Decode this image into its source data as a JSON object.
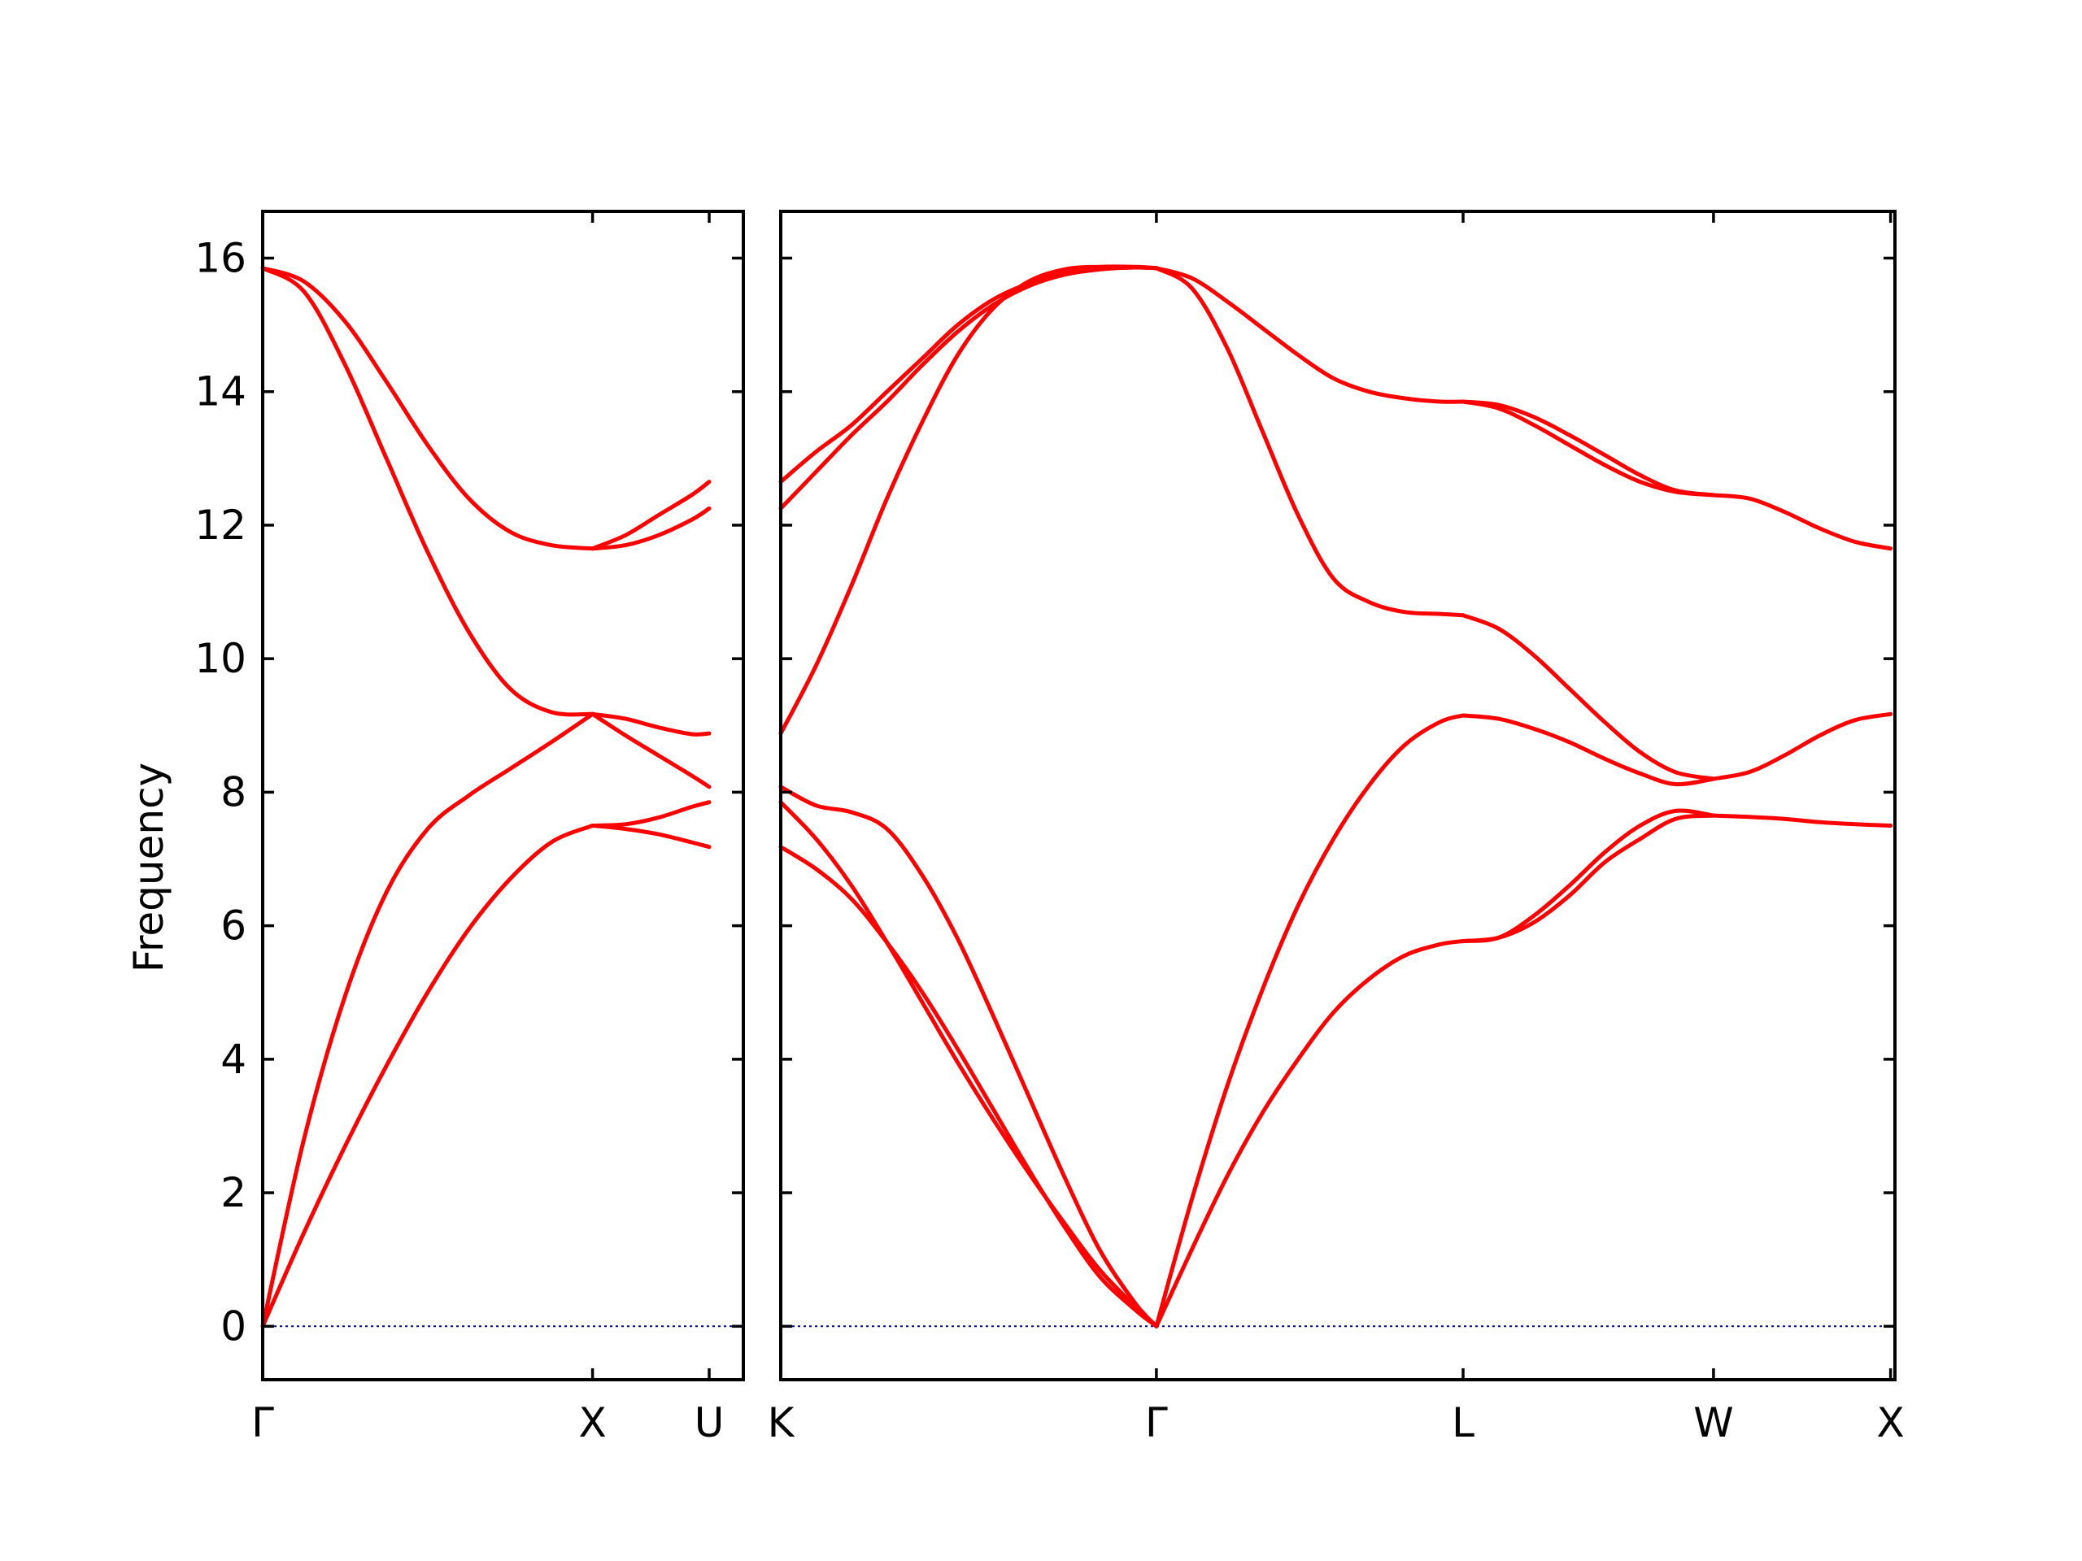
{
  "chart_data": {
    "type": "line",
    "title": "",
    "ylabel": "Frequency",
    "xlabel": "",
    "ylim": [
      -0.8,
      16.7
    ],
    "y_ticks": [
      0,
      2,
      4,
      6,
      8,
      10,
      12,
      14,
      16
    ],
    "grid": false,
    "legend": "none",
    "colors": {
      "bands": "#ff0000",
      "zero_line": "#0000aa",
      "frame": "#000000"
    },
    "panels": [
      {
        "xlim": [
          0,
          1.4571
        ],
        "ticks": [
          {
            "label": "Γ",
            "x": 0
          },
          {
            "label": "X",
            "x": 1.0
          },
          {
            "label": "U",
            "x": 1.3536
          }
        ],
        "segments": [
          {
            "x": [
              0,
              0.125,
              0.25,
              0.375,
              0.5,
              0.625,
              0.75,
              0.875,
              1.0
            ],
            "bands": [
              [
                0,
                1.4,
                2.7,
                3.9,
                5.0,
                5.95,
                6.7,
                7.25,
                7.5
              ],
              [
                0,
                2.8,
                4.95,
                6.5,
                7.45,
                7.95,
                8.35,
                8.75,
                9.17
              ],
              [
                15.85,
                15.5,
                14.4,
                13.0,
                11.6,
                10.4,
                9.55,
                9.2,
                9.17
              ],
              [
                15.85,
                15.65,
                15.05,
                14.15,
                13.2,
                12.4,
                11.9,
                11.7,
                11.65
              ]
            ]
          },
          {
            "x": [
              1.0,
              1.1,
              1.2,
              1.3,
              1.3536
            ],
            "bands": [
              [
                7.5,
                7.52,
                7.62,
                7.78,
                7.85
              ],
              [
                7.5,
                7.45,
                7.37,
                7.25,
                7.18
              ],
              [
                9.17,
                8.85,
                8.55,
                8.25,
                8.08
              ],
              [
                9.17,
                9.1,
                8.97,
                8.87,
                8.88
              ],
              [
                11.65,
                11.7,
                11.85,
                12.08,
                12.25
              ],
              [
                11.65,
                11.85,
                12.15,
                12.45,
                12.65
              ]
            ]
          }
        ]
      },
      {
        "xlim": [
          0,
          3.1461
        ],
        "ticks": [
          {
            "label": "K",
            "x": 0
          },
          {
            "label": "Γ",
            "x": 1.0607
          },
          {
            "label": "L",
            "x": 1.9267
          },
          {
            "label": "W",
            "x": 2.6338
          },
          {
            "label": "X",
            "x": 3.1338
          }
        ],
        "segments": [
          {
            "x": [
              0,
              0.1,
              0.2,
              0.3,
              0.4,
              0.5,
              0.6,
              0.7,
              0.8,
              0.9,
              1.0,
              1.0607
            ],
            "bands": [
              [
                7.18,
                6.85,
                6.4,
                5.75,
                5.0,
                4.15,
                3.25,
                2.35,
                1.5,
                0.75,
                0.25,
                0
              ],
              [
                7.85,
                7.3,
                6.6,
                5.75,
                4.85,
                3.95,
                3.1,
                2.3,
                1.55,
                0.85,
                0.3,
                0
              ],
              [
                8.08,
                7.8,
                7.7,
                7.45,
                6.75,
                5.8,
                4.65,
                3.45,
                2.25,
                1.15,
                0.35,
                0
              ],
              [
                8.88,
                9.9,
                11.1,
                12.4,
                13.55,
                14.55,
                15.25,
                15.65,
                15.83,
                15.87,
                15.87,
                15.85
              ],
              [
                12.25,
                12.8,
                13.35,
                13.85,
                14.4,
                14.9,
                15.3,
                15.58,
                15.75,
                15.83,
                15.86,
                15.85
              ],
              [
                12.65,
                13.1,
                13.5,
                14.0,
                14.5,
                15.0,
                15.38,
                15.62,
                15.77,
                15.84,
                15.86,
                15.85
              ]
            ]
          },
          {
            "x": [
              1.0607,
              1.1607,
              1.2607,
              1.3607,
              1.4607,
              1.5607,
              1.6607,
              1.7607,
              1.8607,
              1.9267
            ],
            "bands": [
              [
                0,
                1.15,
                2.25,
                3.2,
                4.0,
                4.7,
                5.2,
                5.55,
                5.72,
                5.77
              ],
              [
                0,
                1.9,
                3.6,
                5.05,
                6.3,
                7.3,
                8.1,
                8.7,
                9.05,
                9.15
              ],
              [
                15.85,
                15.55,
                14.65,
                13.4,
                12.15,
                11.2,
                10.85,
                10.7,
                10.67,
                10.65
              ],
              [
                15.85,
                15.7,
                15.35,
                14.95,
                14.55,
                14.2,
                14.0,
                13.9,
                13.85,
                13.85
              ]
            ]
          },
          {
            "x": [
              1.9267,
              2.0267,
              2.1267,
              2.2267,
              2.3267,
              2.4267,
              2.5267,
              2.6338
            ],
            "bands": [
              [
                5.77,
                5.82,
                6.05,
                6.45,
                6.95,
                7.3,
                7.6,
                7.65
              ],
              [
                5.77,
                5.82,
                6.15,
                6.6,
                7.1,
                7.5,
                7.72,
                7.65
              ],
              [
                9.15,
                9.1,
                8.95,
                8.75,
                8.5,
                8.28,
                8.12,
                8.2
              ],
              [
                10.65,
                10.45,
                10.05,
                9.55,
                9.05,
                8.6,
                8.3,
                8.2
              ],
              [
                13.85,
                13.75,
                13.5,
                13.2,
                12.9,
                12.65,
                12.5,
                12.45
              ],
              [
                13.85,
                13.8,
                13.62,
                13.35,
                13.05,
                12.75,
                12.52,
                12.45
              ]
            ]
          },
          {
            "x": [
              2.6338,
              2.7338,
              2.8338,
              2.9338,
              3.0338,
              3.1338
            ],
            "bands": [
              [
                7.65,
                7.63,
                7.6,
                7.55,
                7.52,
                7.5
              ],
              [
                8.2,
                8.3,
                8.55,
                8.85,
                9.08,
                9.17
              ],
              [
                12.45,
                12.4,
                12.2,
                11.95,
                11.75,
                11.65
              ]
            ]
          }
        ]
      }
    ]
  }
}
